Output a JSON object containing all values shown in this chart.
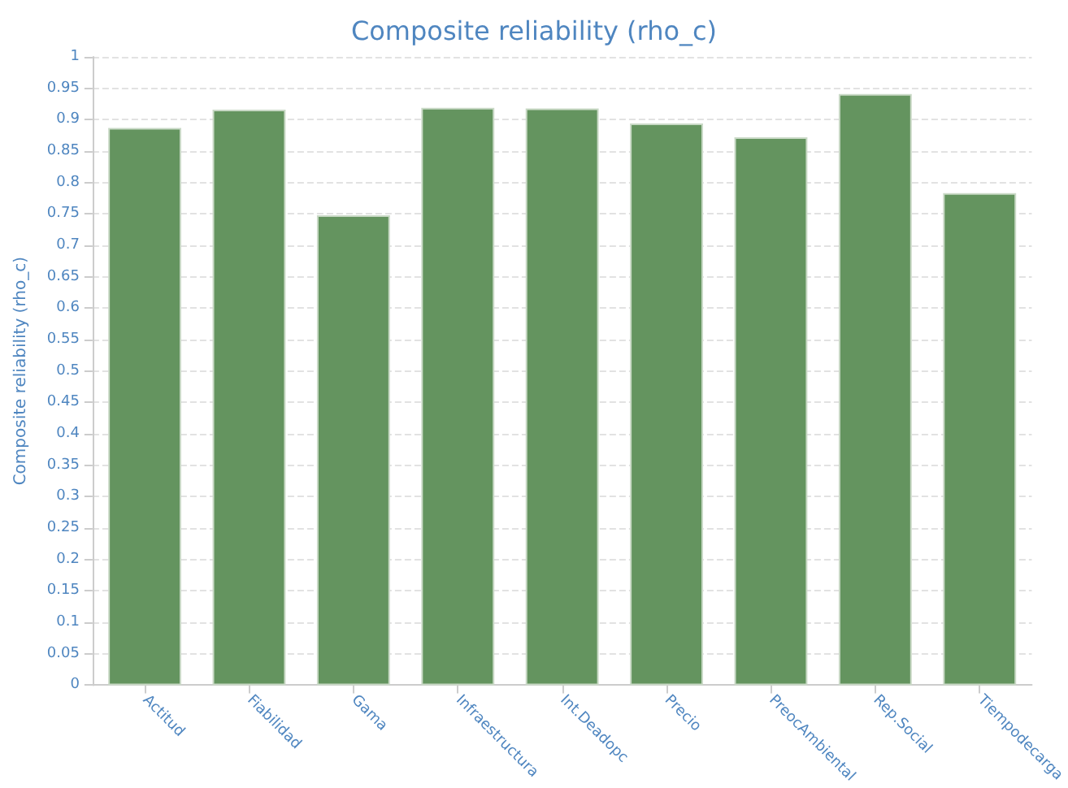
{
  "chart_data": {
    "type": "bar",
    "title": "Composite reliability (rho_c)",
    "ylabel": "Composite reliability (rho_c)",
    "categories": [
      "Actitud",
      "Fiabilidad",
      "Gama",
      "Infraestructura",
      "Int.Deadopc",
      "Precio",
      "PreocAmbiental",
      "Rep.Social",
      "Tiempodecarga"
    ],
    "values": [
      0.887,
      0.916,
      0.748,
      0.919,
      0.918,
      0.894,
      0.872,
      0.941,
      0.783
    ],
    "color": "#64945f",
    "ylim": [
      0,
      1
    ],
    "yticks": [
      0,
      0.05,
      0.1,
      0.15,
      0.2,
      0.25,
      0.3,
      0.35,
      0.4,
      0.45,
      0.5,
      0.55,
      0.6,
      0.65,
      0.7,
      0.75,
      0.8,
      0.85,
      0.9,
      0.95,
      1
    ],
    "grid": "y"
  }
}
